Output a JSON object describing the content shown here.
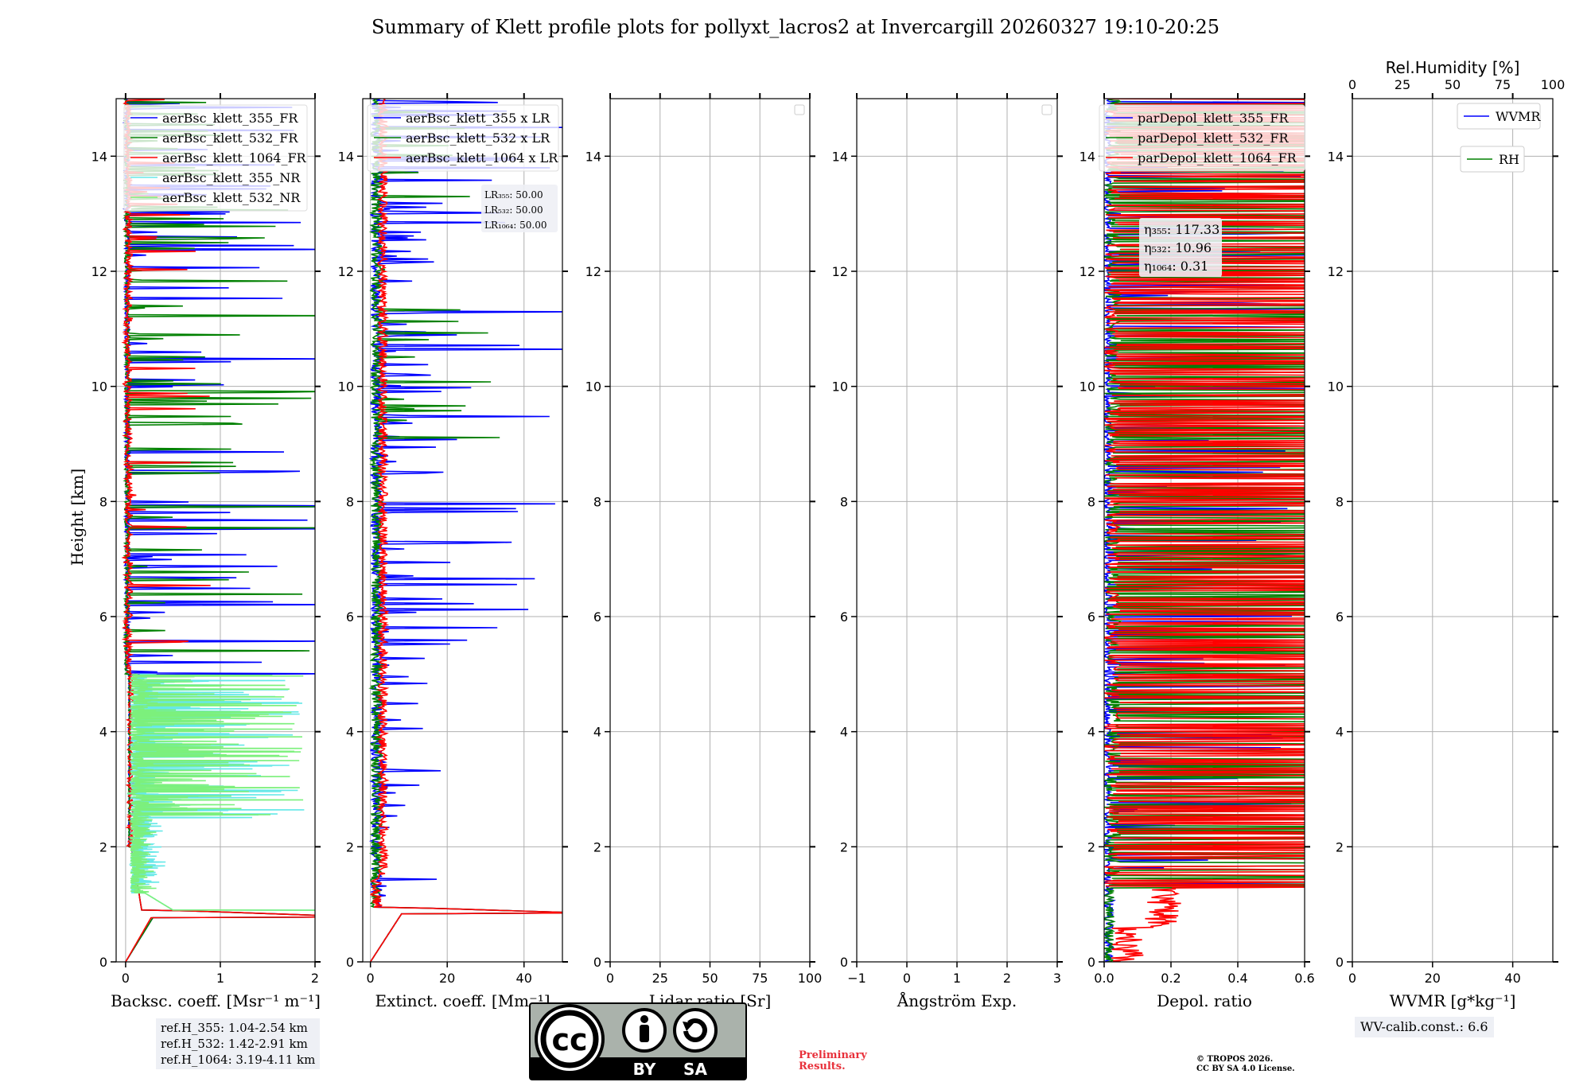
{
  "title": "Summary of Klett profile plots for pollyxt_lacros2 at Invercargill 20260327 19:10-20:25",
  "y_axis_label": "Height [km]",
  "colors": {
    "ch355": "#0000ff",
    "ch532": "#008000",
    "ch1064": "#ff0000",
    "nr355": "#66e8e8",
    "nr532": "#7cf07c"
  },
  "chart_data": [
    {
      "type": "line",
      "id": "backscatter",
      "xlabel": "Backsc. coeff. [Msr⁻¹ m⁻¹]",
      "xlim": [
        -0.1,
        2
      ],
      "ylim": [
        0,
        15
      ],
      "xticks": [
        0,
        1,
        2
      ],
      "xtick_labels": [
        "0",
        "1",
        "2"
      ],
      "yticks": [
        0,
        2,
        4,
        6,
        8,
        10,
        12,
        14
      ],
      "legend": [
        "aerBsc_klett_355_FR",
        "aerBsc_klett_532_FR",
        "aerBsc_klett_1064_FR",
        "aerBsc_klett_355_NR",
        "aerBsc_klett_532_NR"
      ],
      "series": [
        {
          "name": "aerBsc_klett_355_FR",
          "color": "#0000ff",
          "kind": "bsc355",
          "seed": 11
        },
        {
          "name": "aerBsc_klett_532_FR",
          "color": "#008000",
          "kind": "bsc532",
          "seed": 23
        },
        {
          "name": "aerBsc_klett_1064_FR",
          "color": "#ff0000",
          "kind": "bsc1064",
          "seed": 37
        },
        {
          "name": "aerBsc_klett_355_NR",
          "color": "#66e8e8",
          "kind": "nr355",
          "seed": 53
        },
        {
          "name": "aerBsc_klett_532_NR",
          "color": "#7cf07c",
          "kind": "nr532",
          "seed": 71
        }
      ]
    },
    {
      "type": "line",
      "id": "extinction",
      "xlabel": "Extinct. coeff. [Mm⁻¹]",
      "xlim": [
        -2,
        50
      ],
      "ylim": [
        0,
        15
      ],
      "xticks": [
        0,
        20,
        40
      ],
      "xtick_labels": [
        "0",
        "20",
        "40"
      ],
      "yticks": [
        0,
        2,
        4,
        6,
        8,
        10,
        12,
        14
      ],
      "legend": [
        "aerBsc_klett_355 x LR",
        "aerBsc_klett_532 x LR",
        "aerBsc_klett_1064 x LR"
      ],
      "lr_labels": [
        "LR₃₅₅: 50.00",
        "LR₅₃₂: 50.00",
        "LR₁₀₆₄: 50.00"
      ],
      "series": [
        {
          "name": "aerBsc_klett_355 x LR",
          "color": "#0000ff",
          "kind": "ext355",
          "seed": 83
        },
        {
          "name": "aerBsc_klett_532 x LR",
          "color": "#008000",
          "kind": "ext532",
          "seed": 97
        },
        {
          "name": "aerBsc_klett_1064 x LR",
          "color": "#ff0000",
          "kind": "ext1064",
          "seed": 101
        }
      ]
    },
    {
      "type": "line",
      "id": "lidar-ratio",
      "xlabel": "Lidar ratio [Sr]",
      "xlim": [
        0,
        100
      ],
      "ylim": [
        0,
        15
      ],
      "xticks": [
        0,
        25,
        50,
        75,
        100
      ],
      "xtick_labels": [
        "0",
        "25",
        "50",
        "75",
        "100"
      ],
      "yticks": [
        0,
        2,
        4,
        6,
        8,
        10,
        12,
        14
      ],
      "series": []
    },
    {
      "type": "line",
      "id": "angstrom",
      "xlabel": "Ångström Exp.",
      "xlim": [
        -1,
        3
      ],
      "ylim": [
        0,
        15
      ],
      "xticks": [
        -1,
        0,
        1,
        2,
        3
      ],
      "xtick_labels": [
        "−1",
        "0",
        "1",
        "2",
        "3"
      ],
      "yticks": [
        0,
        2,
        4,
        6,
        8,
        10,
        12,
        14
      ],
      "series": []
    },
    {
      "type": "line",
      "id": "depol",
      "xlabel": "Depol. ratio",
      "xlim": [
        0,
        0.6
      ],
      "ylim": [
        0,
        15
      ],
      "xticks": [
        0,
        0.2,
        0.4,
        0.6
      ],
      "xtick_labels": [
        "0.0",
        "0.2",
        "0.4",
        "0.6"
      ],
      "yticks": [
        0,
        2,
        4,
        6,
        8,
        10,
        12,
        14
      ],
      "legend": [
        "parDepol_klett_355_FR",
        "parDepol_klett_532_FR",
        "parDepol_klett_1064_FR"
      ],
      "eta_labels": [
        "η₃₅₅: 117.33",
        "η₅₃₂: 10.96",
        "η₁₀₆₄: 0.31"
      ],
      "series": [
        {
          "name": "parDepol_klett_355_FR",
          "color": "#0000ff",
          "kind": "dep355",
          "seed": 131
        },
        {
          "name": "parDepol_klett_532_FR",
          "color": "#008000",
          "kind": "dep532",
          "seed": 149
        },
        {
          "name": "parDepol_klett_1064_FR",
          "color": "#ff0000",
          "kind": "dep1064",
          "seed": 163
        }
      ]
    },
    {
      "type": "line",
      "id": "wvmr",
      "xlabel": "WVMR [g*kg⁻¹]",
      "xlim": [
        0,
        50
      ],
      "ylim": [
        0,
        15
      ],
      "xticks": [
        0,
        20,
        40
      ],
      "xtick_labels": [
        "0",
        "20",
        "40"
      ],
      "top_xlabel": "Rel.Humidity [%]",
      "top_xticks": [
        0,
        25,
        50,
        75,
        100
      ],
      "top_xtick_labels": [
        "0",
        "25",
        "50",
        "75",
        "100"
      ],
      "yticks": [
        0,
        2,
        4,
        6,
        8,
        10,
        12,
        14
      ],
      "legend": [
        "WVMR",
        "RH"
      ],
      "series": []
    }
  ],
  "ref_heights": [
    "ref.H_355: 1.04-2.54 km",
    "ref.H_532: 1.42-2.91 km",
    "ref.H_1064: 3.19-4.11 km"
  ],
  "wv_calib": "WV-calib.const.: 6.6",
  "preliminary": [
    "Preliminary",
    "Results."
  ],
  "copyright": [
    "© TROPOS 2026.",
    "CC BY SA 4.0 License."
  ],
  "license_logo": {
    "cc": "cc",
    "by": "BY",
    "sa": "SA"
  }
}
